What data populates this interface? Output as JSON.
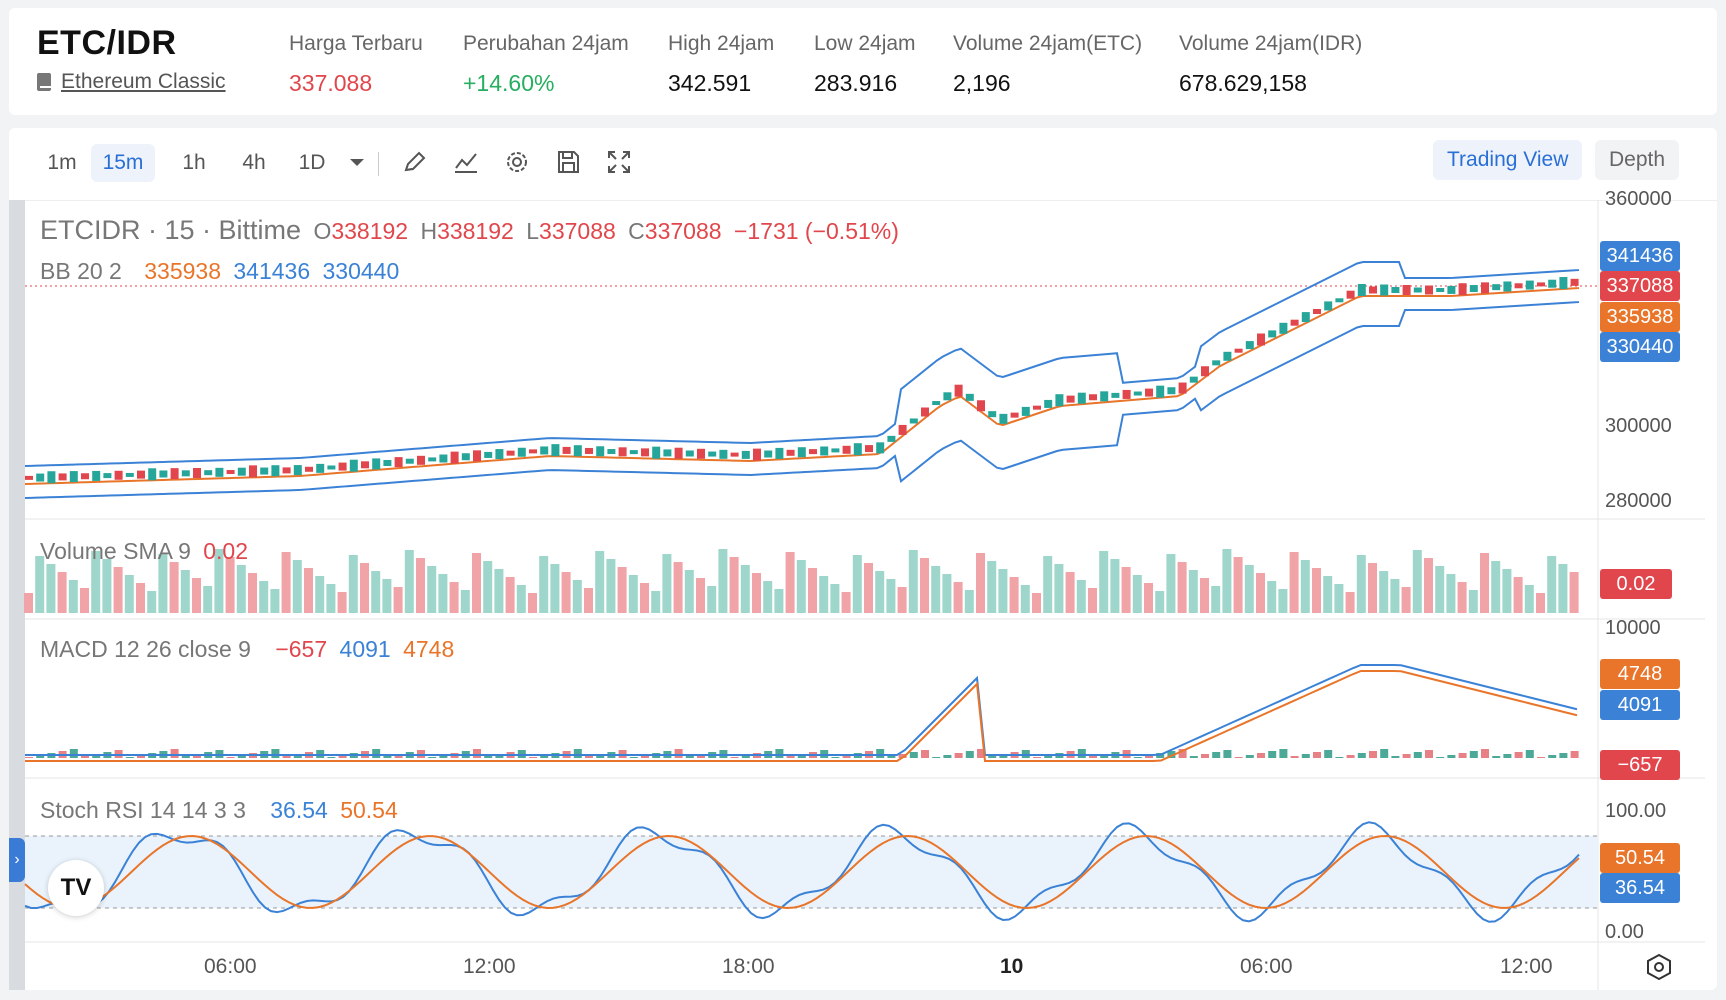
{
  "header": {
    "pair": "ETC/IDR",
    "name": "Ethereum Classic",
    "stats": [
      {
        "label": "Harga Terbaru",
        "value": "337.088",
        "color": "red"
      },
      {
        "label": "Perubahan 24jam",
        "value": "+14.60%",
        "color": "green"
      },
      {
        "label": "High 24jam",
        "value": "342.591",
        "color": ""
      },
      {
        "label": "Low 24jam",
        "value": "283.916",
        "color": ""
      },
      {
        "label": "Volume 24jam(ETC)",
        "value": "2,196",
        "color": ""
      },
      {
        "label": "Volume 24jam(IDR)",
        "value": "678.629,158",
        "color": ""
      }
    ]
  },
  "toolbar": {
    "timeframes": [
      "1m",
      "15m",
      "1h",
      "4h",
      "1D"
    ],
    "active_timeframe": "15m",
    "tabs": {
      "trading_view": "Trading View",
      "depth": "Depth"
    }
  },
  "legend": {
    "symbol": "ETCIDR · 15 · Bittime",
    "o_label": "O",
    "o": "338192",
    "h_label": "H",
    "h": "338192",
    "l_label": "L",
    "l": "337088",
    "c_label": "C",
    "c": "337088",
    "change": "−1731 (−0.51%)",
    "bb_label": "BB 20 2",
    "bb_mid": "335938",
    "bb_up": "341436",
    "bb_low": "330440",
    "vol_label": "Volume SMA 9",
    "vol_val": "0.02",
    "macd_label": "MACD 12 26 close 9",
    "macd_hist": "−657",
    "macd_line": "4091",
    "macd_signal": "4748",
    "stoch_label": "Stoch RSI 14 14 3 3",
    "stoch_k": "36.54",
    "stoch_d": "50.54"
  },
  "price_axis": {
    "top": "360000",
    "mid": "300000",
    "low": "280000"
  },
  "macd_axis": {
    "top": "10000"
  },
  "stoch_axis": {
    "top": "100.00",
    "bottom": "0.00"
  },
  "tags": {
    "bb_up": "341436",
    "last": "337088",
    "bb_mid": "335938",
    "bb_low": "330440",
    "vol": "0.02",
    "macd_signal": "4748",
    "macd_line": "4091",
    "macd_hist": "−657",
    "stoch_d": "50.54",
    "stoch_k": "36.54"
  },
  "time_axis": [
    "06:00",
    "12:00",
    "18:00",
    "10",
    "06:00",
    "12:00"
  ],
  "colors": {
    "up": "#26a69a",
    "down": "#e0464c",
    "blue": "#3b82d6",
    "orange": "#e8752a",
    "accent": "#2a6fd6"
  }
}
